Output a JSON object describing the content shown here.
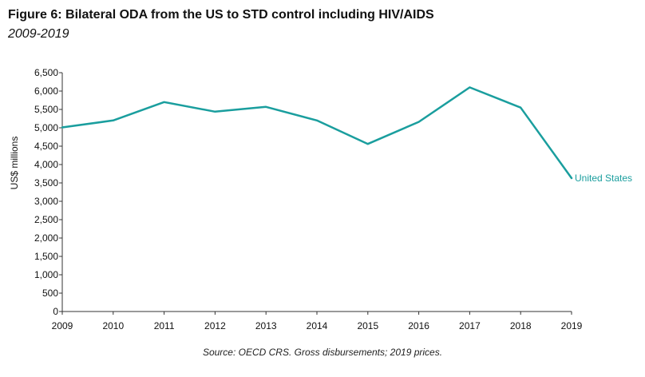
{
  "title": "Figure 6: Bilateral ODA from the US to STD control including HIV/AIDS",
  "subtitle": "2009-2019",
  "source": "Source: OECD CRS. Gross disbursements; 2019 prices.",
  "colors": {
    "series": "#1a9e9e",
    "axis": "#333333",
    "text": "#111111"
  },
  "chart_data": {
    "type": "line",
    "title": "Figure 6: Bilateral ODA from the US to STD control including HIV/AIDS",
    "subtitle": "2009-2019",
    "xlabel": "",
    "ylabel": "US$ millions",
    "x": [
      "2009",
      "2010",
      "2011",
      "2012",
      "2013",
      "2014",
      "2015",
      "2016",
      "2017",
      "2018",
      "2019"
    ],
    "ylim": [
      0,
      6500
    ],
    "yticks": [
      0,
      500,
      1000,
      1500,
      2000,
      2500,
      3000,
      3500,
      4000,
      4500,
      5000,
      5500,
      6000,
      6500
    ],
    "ytick_labels": [
      "0",
      "500",
      "1,000",
      "1,500",
      "2,000",
      "2,500",
      "3,000",
      "3,500",
      "4,000",
      "4,500",
      "5,000",
      "5,500",
      "6,000",
      "6,500"
    ],
    "grid": false,
    "legend": "end-of-line label",
    "series": [
      {
        "name": "United States",
        "values": [
          5010,
          5200,
          5700,
          5440,
          5570,
          5200,
          4560,
          5160,
          6100,
          5550,
          3630
        ]
      }
    ]
  }
}
